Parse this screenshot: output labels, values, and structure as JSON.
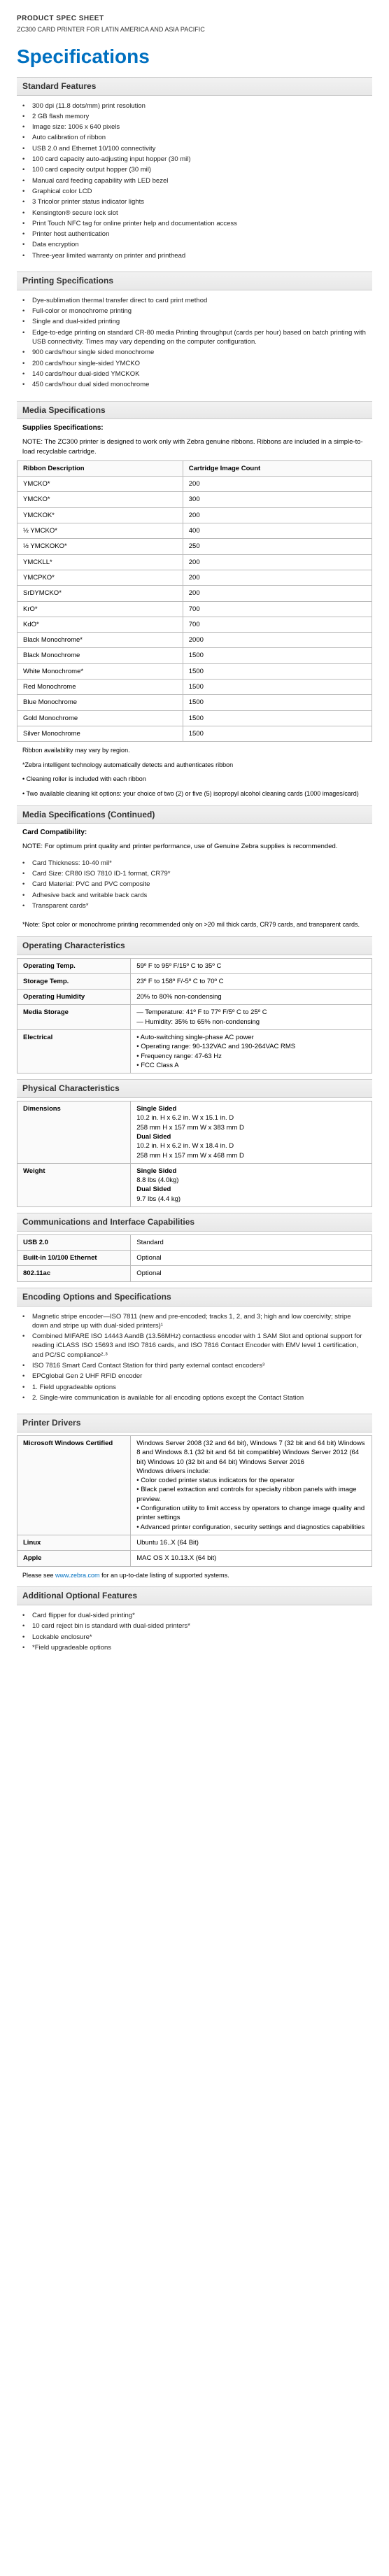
{
  "eyebrow": "PRODUCT SPEC SHEET",
  "subtitle": "ZC300 CARD PRINTER FOR LATIN AMERICA AND ASIA PACIFIC",
  "title": "Specifications",
  "sections": {
    "standard": {
      "heading": "Standard Features",
      "items": [
        "300 dpi (11.8 dots/mm) print resolution",
        "2 GB flash memory",
        "Image size: 1006 x 640 pixels",
        "Auto calibration of ribbon",
        "USB 2.0 and Ethernet 10/100 connectivity",
        "100 card capacity auto-adjusting input hopper (30 mil)",
        "100 card capacity output hopper (30 mil)",
        "Manual card feeding capability with LED bezel",
        "Graphical color LCD",
        "3 Tricolor printer status indicator lights",
        "Kensington® secure lock slot",
        "Print Touch NFC tag for online printer help and documentation access",
        "Printer host authentication",
        "Data encryption",
        "Three-year limited warranty on printer and printhead"
      ]
    },
    "printing": {
      "heading": "Printing Specifications",
      "items": [
        "Dye-sublimation thermal transfer direct to card print method",
        "Full-color or monochrome printing",
        "Single and dual-sided printing",
        "Edge-to-edge printing on standard CR-80 media Printing throughput (cards per hour) based on batch printing with USB connectivity. Times may vary depending on the computer configuration.",
        "900 cards/hour single sided monochrome",
        "200 cards/hour single-sided YMCKO",
        "140 cards/hour dual-sided YMCKOK",
        "450 cards/hour dual sided monochrome"
      ]
    },
    "media": {
      "heading": "Media Specifications",
      "supplies_title": "Supplies Specifications:",
      "supplies_note": "NOTE: The ZC300 printer is designed to work only with Zebra genuine ribbons. Ribbons are included in a simple-to-load recyclable cartridge.",
      "table_headers": [
        "Ribbon Description",
        "Cartridge Image Count"
      ],
      "rows": [
        [
          "YMCKO*",
          "200"
        ],
        [
          "YMCKO*",
          "300"
        ],
        [
          "YMCKOK*",
          "200"
        ],
        [
          "½ YMCKO*",
          "400"
        ],
        [
          "½ YMCKOKO*",
          "250"
        ],
        [
          "YMCKLL*",
          "200"
        ],
        [
          "YMCPKO*",
          "200"
        ],
        [
          "SrDYMCKO*",
          "200"
        ],
        [
          "KrO*",
          "700"
        ],
        [
          "KdO*",
          "700"
        ],
        [
          "Black Monochrome*",
          "2000"
        ],
        [
          "Black Monochrome",
          "1500"
        ],
        [
          "White Monochrome*",
          "1500"
        ],
        [
          "Red Monochrome",
          "1500"
        ],
        [
          "Blue Monochrome",
          "1500"
        ],
        [
          "Gold Monochrome",
          "1500"
        ],
        [
          "Silver Monochrome",
          "1500"
        ]
      ],
      "footnotes": [
        "Ribbon availability may vary by region.",
        "*Zebra intelligent technology automatically detects and authenticates ribbon",
        "• Cleaning roller is included with each ribbon",
        "• Two available cleaning kit options: your choice of two (2) or five (5) isopropyl alcohol cleaning cards (1000 images/card)"
      ]
    },
    "media2": {
      "heading": "Media Specifications (Continued)",
      "card_title": "Card Compatibility:",
      "card_note": "NOTE: For optimum print quality and printer performance, use of Genuine Zebra supplies is recommended.",
      "items": [
        "Card Thickness: 10-40 mil*",
        "Card Size: CR80 ISO 7810 ID-1 format, CR79*",
        "Card Material: PVC and PVC composite",
        "Adhesive back and writable back cards",
        "Transparent cards*"
      ],
      "card_footnote": "*Note: Spot color or monochrome printing recommended only on >20 mil thick cards, CR79 cards, and transparent cards."
    },
    "operating": {
      "heading": "Operating Characteristics",
      "rows": [
        [
          "Operating Temp.",
          "59º F to 95º F/15º C to 35º C"
        ],
        [
          "Storage Temp.",
          "23º F to 158º F/-5º C to 70º C"
        ],
        [
          "Operating Humidity",
          "20% to 80% non-condensing"
        ],
        [
          "Media Storage",
          "— Temperature: 41º F to 77º F/5º C to 25º C\n— Humidity: 35% to 65% non-condensing"
        ],
        [
          "Electrical",
          "• Auto-switching single-phase AC power\n• Operating range: 90-132VAC and 190-264VAC RMS\n• Frequency range: 47-63 Hz\n• FCC Class A"
        ]
      ]
    },
    "physical": {
      "heading": "Physical Characteristics",
      "rows": [
        [
          "Dimensions",
          {
            "b1": "Single Sided",
            "t1": "10.2 in. H x 6.2 in. W x 15.1 in. D\n258 mm H x 157 mm W x 383 mm D",
            "b2": "Dual Sided",
            "t2": "10.2 in. H x 6.2 in. W x 18.4 in. D\n258 mm H x 157 mm W x 468 mm D"
          }
        ],
        [
          "Weight",
          {
            "b1": "Single Sided",
            "t1": "8.8 lbs (4.0kg)",
            "b2": "Dual Sided",
            "t2": "9.7 lbs (4.4 kg)"
          }
        ]
      ]
    },
    "comms": {
      "heading": "Communications and Interface Capabilities",
      "rows": [
        [
          "USB 2.0",
          "Standard"
        ],
        [
          "Built-in 10/100 Ethernet",
          "Optional"
        ],
        [
          "802.11ac",
          "Optional"
        ]
      ]
    },
    "encoding": {
      "heading": "Encoding Options and Specifications",
      "items": [
        "Magnetic stripe encoder—ISO 7811 (new and pre-encoded; tracks 1, 2, and 3; high and low coercivity; stripe down and stripe up with dual-sided printers)¹",
        "Combined MIFARE ISO 14443 AandB (13.56MHz) contactless encoder with 1 SAM Slot and optional support for reading iCLASS ISO 15693 and ISO 7816 cards, and ISO 7816 Contact Encoder with EMV level 1 certification, and PC/SC compliance²·³",
        "ISO 7816 Smart Card Contact Station for third party external contact encoders³",
        "EPCglobal Gen 2 UHF RFID encoder",
        "1. Field upgradeable options",
        "2. Single-wire communication is available for all encoding options except the Contact Station"
      ]
    },
    "drivers": {
      "heading": "Printer Drivers",
      "rows": [
        [
          "Microsoft Windows Certified",
          "Windows Server 2008 (32 and 64 bit), Windows 7 (32 bit and 64 bit) Windows 8 and Windows 8.1 (32 bit and 64 bit compatible) Windows Server 2012 (64 bit) Windows 10 (32 bit and 64 bit) Windows Server 2016\nWindows drivers include:\n• Color coded printer status indicators for the operator\n• Black panel extraction and controls for specialty ribbon panels with image preview.\n• Configuration utility to limit access by operators to change image quality and printer settings\n• Advanced printer configuration, security settings and diagnostics capabilities"
        ],
        [
          "Linux",
          "Ubuntu 16..X (64 Bit)"
        ],
        [
          "Apple",
          "MAC OS X 10.13.X (64 bit)"
        ]
      ],
      "link_pre": "Please see ",
      "link": "www.zebra.com",
      "link_post": " for an up-to-date listing of supported systems."
    },
    "additional": {
      "heading": "Additional Optional Features",
      "items": [
        "Card flipper for dual-sided printing*",
        "10 card reject bin is standard with dual-sided printers*",
        "Lockable enclosure*",
        "*Field upgradeable options"
      ]
    }
  }
}
